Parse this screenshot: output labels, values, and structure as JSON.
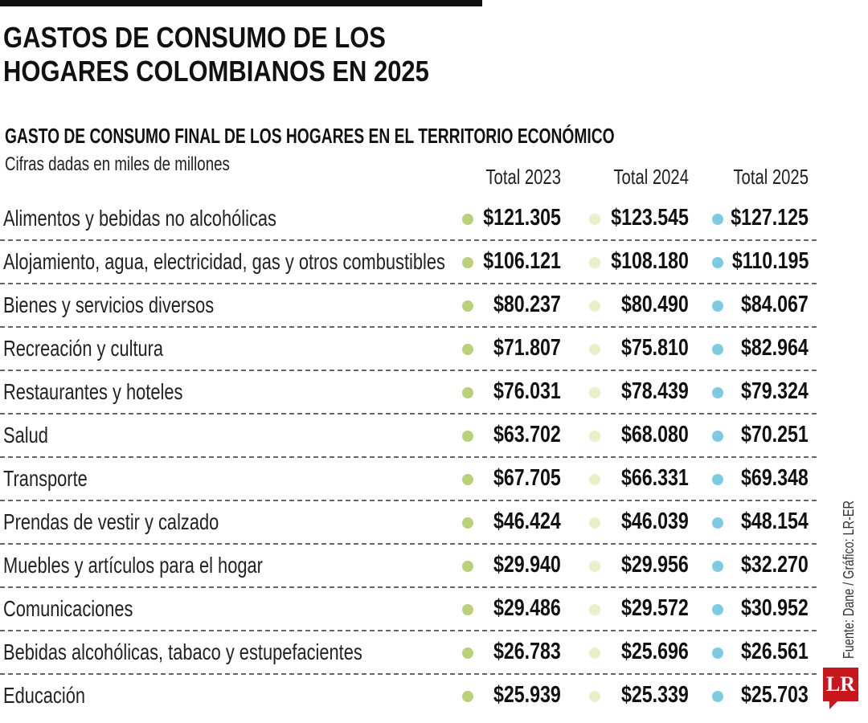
{
  "title_lines": [
    "GASTOS DE CONSUMO DE LOS",
    "HOGARES COLOMBIANOS EN 2025"
  ],
  "subtitle": "GASTO DE CONSUMO FINAL DE LOS HOGARES EN EL TERRITORIO ECONÓMICO",
  "note": "Cifras dadas en miles de millones",
  "source": "Fuente: Dane / Gráfico: LR-ER",
  "logo": "LR",
  "colors": {
    "total_2023": "#b9d27a",
    "total_2024": "#e8f0c8",
    "total_2025": "#7ccbe3",
    "logo": "#c8161d"
  },
  "chart_data": {
    "type": "table",
    "columns": [
      "Total 2023",
      "Total 2024",
      "Total 2025"
    ],
    "rows": [
      {
        "label": "Alimentos y bebidas no alcohólicas",
        "values": [
          "$121.305",
          "$123.545",
          "$127.125"
        ]
      },
      {
        "label": "Alojamiento, agua, electricidad, gas y otros combustibles",
        "values": [
          "$106.121",
          "$108.180",
          "$110.195"
        ]
      },
      {
        "label": "Bienes y servicios diversos",
        "values": [
          "$80.237",
          "$80.490",
          "$84.067"
        ]
      },
      {
        "label": "Recreación y cultura",
        "values": [
          "$71.807",
          "$75.810",
          "$82.964"
        ]
      },
      {
        "label": "Restaurantes y hoteles",
        "values": [
          "$76.031",
          "$78.439",
          "$79.324"
        ]
      },
      {
        "label": "Salud",
        "values": [
          "$63.702",
          "$68.080",
          "$70.251"
        ]
      },
      {
        "label": "Transporte",
        "values": [
          "$67.705",
          "$66.331",
          "$69.348"
        ]
      },
      {
        "label": "Prendas de vestir y calzado",
        "values": [
          "$46.424",
          "$46.039",
          "$48.154"
        ]
      },
      {
        "label": "Muebles y artículos para el hogar",
        "values": [
          "$29.940",
          "$29.956",
          "$32.270"
        ]
      },
      {
        "label": "Comunicaciones",
        "values": [
          "$29.486",
          "$29.572",
          "$30.952"
        ]
      },
      {
        "label": "Bebidas alcohólicas, tabaco y estupefacientes",
        "values": [
          "$26.783",
          "$25.696",
          "$26.561"
        ]
      },
      {
        "label": "Educación",
        "values": [
          "$25.939",
          "$25.339",
          "$25.703"
        ]
      }
    ]
  }
}
